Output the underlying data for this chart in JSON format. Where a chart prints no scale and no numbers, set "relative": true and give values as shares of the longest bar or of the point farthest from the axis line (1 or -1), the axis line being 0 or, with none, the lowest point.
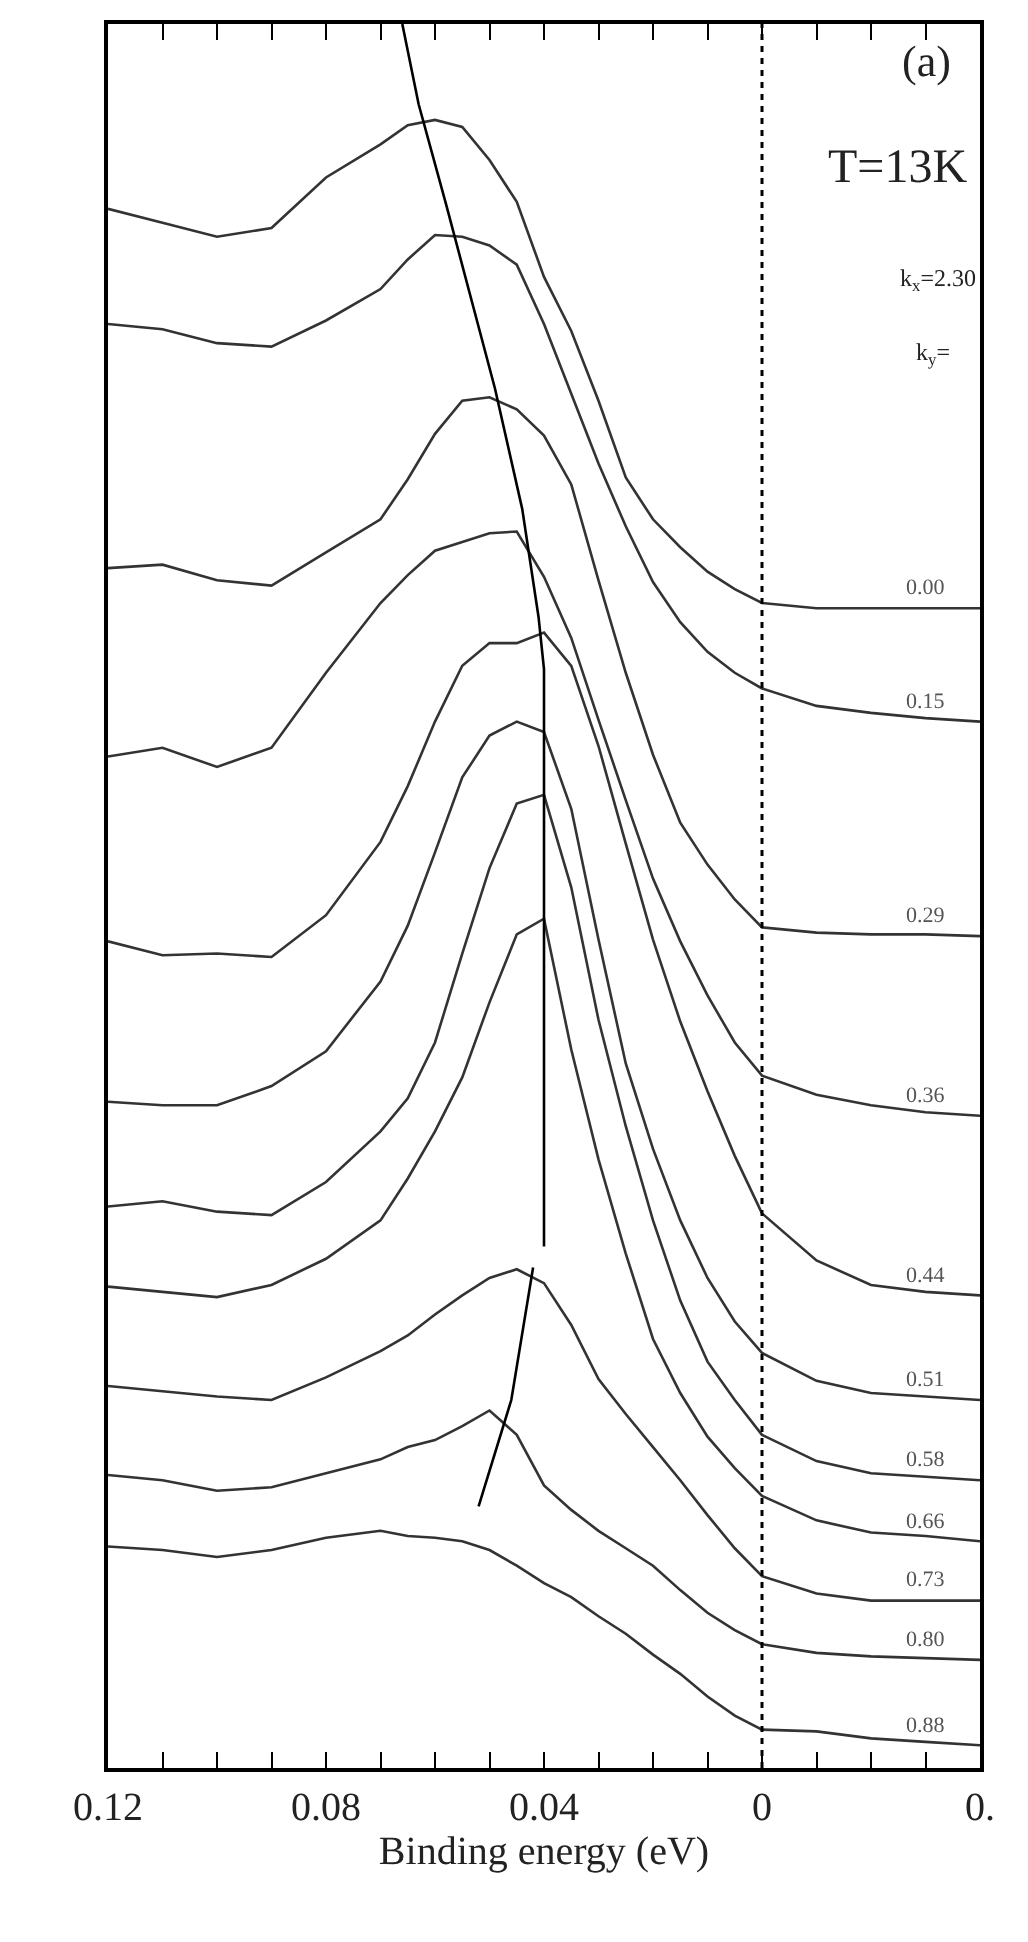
{
  "chart_data": {
    "type": "line",
    "relative": true,
    "xlabel": "Binding energy (eV)",
    "x": [
      0.12,
      0.11,
      0.1,
      0.09,
      0.08,
      0.07,
      0.065,
      0.06,
      0.055,
      0.05,
      0.045,
      0.04,
      0.035,
      0.03,
      0.025,
      0.02,
      0.015,
      0.01,
      0.005,
      0,
      -0.01,
      -0.02,
      -0.03,
      -0.04
    ],
    "xlim": [
      0.12,
      -0.04
    ],
    "xticks": [
      0.12,
      {
        "value": 0.11,
        "label": null
      },
      {
        "value": 0.1,
        "label": null
      },
      {
        "value": 0.09,
        "label": null
      },
      0.08,
      {
        "value": 0.07,
        "label": null
      },
      {
        "value": 0.06,
        "label": null
      },
      {
        "value": 0.05,
        "label": null
      },
      0.04,
      {
        "value": 0.03,
        "label": null
      },
      {
        "value": 0.02,
        "label": null
      },
      {
        "value": 0.01,
        "label": null
      },
      0,
      {
        "value": -0.01,
        "label": null
      },
      {
        "value": -0.02,
        "label": null
      },
      {
        "value": -0.03,
        "label": null
      },
      {
        "value": -0.04,
        "label": "0."
      }
    ],
    "legend": false,
    "ref_lines": [
      {
        "axis": "x",
        "value": 0,
        "line_style": "dotted",
        "color": "#000000"
      }
    ],
    "annotations": [
      "(a)",
      "T=13K",
      "k$_{x}$=2.30",
      "k$_{y}$="
    ],
    "series": [
      {
        "name": "0.00",
        "color": "#333333",
        "values": [
          0.894,
          0.886,
          0.878,
          0.883,
          0.912,
          0.931,
          0.942,
          0.945,
          0.941,
          0.922,
          0.898,
          0.855,
          0.824,
          0.784,
          0.74,
          0.716,
          0.7,
          0.686,
          0.676,
          0.668,
          0.665,
          0.665,
          0.665,
          0.665
        ]
      },
      {
        "name": "0.15",
        "color": "#333333",
        "values": [
          0.828,
          0.825,
          0.817,
          0.815,
          0.83,
          0.848,
          0.865,
          0.879,
          0.878,
          0.873,
          0.862,
          0.828,
          0.788,
          0.748,
          0.712,
          0.68,
          0.657,
          0.64,
          0.628,
          0.619,
          0.609,
          0.605,
          0.602,
          0.6
        ]
      },
      {
        "name": "0.29",
        "color": "#333333",
        "values": [
          0.688,
          0.69,
          0.681,
          0.678,
          0.697,
          0.716,
          0.739,
          0.765,
          0.784,
          0.786,
          0.779,
          0.764,
          0.736,
          0.681,
          0.628,
          0.581,
          0.542,
          0.518,
          0.498,
          0.482,
          0.479,
          0.478,
          0.478,
          0.477
        ]
      },
      {
        "name": "0.36",
        "color": "#333333",
        "values": [
          0.58,
          0.585,
          0.574,
          0.585,
          0.628,
          0.668,
          0.684,
          0.698,
          0.703,
          0.708,
          0.709,
          0.683,
          0.648,
          0.601,
          0.555,
          0.51,
          0.474,
          0.443,
          0.416,
          0.397,
          0.386,
          0.38,
          0.376,
          0.374
        ]
      },
      {
        "name": "0.44",
        "color": "#333333",
        "values": [
          0.474,
          0.466,
          0.467,
          0.465,
          0.489,
          0.531,
          0.563,
          0.6,
          0.632,
          0.645,
          0.645,
          0.651,
          0.632,
          0.586,
          0.53,
          0.475,
          0.428,
          0.388,
          0.351,
          0.318,
          0.291,
          0.277,
          0.273,
          0.271
        ]
      },
      {
        "name": "0.51",
        "color": "#333333",
        "values": [
          0.382,
          0.38,
          0.38,
          0.391,
          0.411,
          0.451,
          0.483,
          0.525,
          0.568,
          0.592,
          0.6,
          0.594,
          0.55,
          0.475,
          0.404,
          0.355,
          0.314,
          0.281,
          0.256,
          0.238,
          0.222,
          0.215,
          0.213,
          0.211
        ]
      },
      {
        "name": "0.58",
        "color": "#333333",
        "values": [
          0.322,
          0.325,
          0.319,
          0.317,
          0.336,
          0.365,
          0.384,
          0.416,
          0.467,
          0.516,
          0.553,
          0.558,
          0.505,
          0.429,
          0.368,
          0.314,
          0.268,
          0.233,
          0.211,
          0.191,
          0.176,
          0.169,
          0.167,
          0.165
        ]
      },
      {
        "name": "0.66",
        "color": "#333333",
        "values": [
          0.276,
          0.273,
          0.27,
          0.277,
          0.292,
          0.314,
          0.338,
          0.365,
          0.396,
          0.439,
          0.478,
          0.487,
          0.412,
          0.349,
          0.295,
          0.246,
          0.215,
          0.19,
          0.172,
          0.156,
          0.142,
          0.135,
          0.133,
          0.13
        ]
      },
      {
        "name": "0.73",
        "color": "#333333",
        "values": [
          0.219,
          0.216,
          0.213,
          0.211,
          0.224,
          0.239,
          0.248,
          0.26,
          0.271,
          0.281,
          0.286,
          0.278,
          0.254,
          0.223,
          0.203,
          0.184,
          0.165,
          0.145,
          0.126,
          0.11,
          0.1,
          0.096,
          0.096,
          0.096
        ]
      },
      {
        "name": "0.80",
        "color": "#333333",
        "values": [
          0.168,
          0.165,
          0.159,
          0.161,
          0.169,
          0.177,
          0.184,
          0.188,
          0.196,
          0.205,
          0.191,
          0.162,
          0.148,
          0.136,
          0.126,
          0.116,
          0.102,
          0.089,
          0.079,
          0.071,
          0.066,
          0.064,
          0.063,
          0.062
        ]
      },
      {
        "name": "0.88",
        "color": "#333333",
        "values": [
          0.127,
          0.125,
          0.121,
          0.125,
          0.132,
          0.136,
          0.133,
          0.132,
          0.13,
          0.125,
          0.116,
          0.106,
          0.098,
          0.087,
          0.077,
          0.065,
          0.054,
          0.041,
          0.03,
          0.022,
          0.021,
          0.017,
          0.015,
          0.013
        ]
      },
      {
        "type": "line",
        "color": "#000000",
        "x": [
          0.066,
          0.063,
          0.058,
          0.049,
          0.044,
          0.041,
          0.04,
          0.04,
          0.041,
          0.042,
          0.046,
          0.052
        ],
        "values": [
          1.0,
          0.954,
          0.897,
          0.791,
          0.722,
          0.66,
          0.63,
          0.299,
          null,
          0.287,
          0.211,
          0.15
        ]
      }
    ]
  }
}
